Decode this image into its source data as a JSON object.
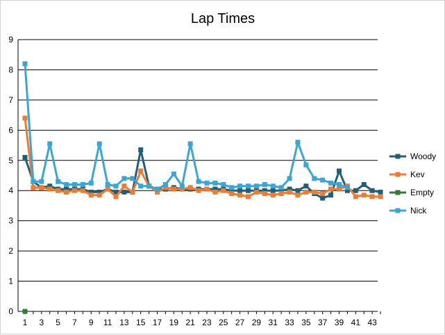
{
  "chart_data": {
    "type": "line",
    "title": "Lap Times",
    "xlabel": "",
    "ylabel": "",
    "ylim": [
      0,
      9
    ],
    "yticks": [
      0,
      1,
      2,
      3,
      4,
      5,
      6,
      7,
      8,
      9
    ],
    "xlim": [
      1,
      44
    ],
    "xticks": [
      1,
      3,
      5,
      7,
      9,
      11,
      13,
      15,
      17,
      19,
      21,
      23,
      25,
      27,
      29,
      31,
      33,
      35,
      37,
      39,
      41,
      43
    ],
    "grid": "horizontal",
    "legend_position": "right",
    "series": [
      {
        "name": "Woody",
        "color": "#1f5f7a",
        "marker": "square",
        "x": [
          1,
          2,
          3,
          4,
          5,
          6,
          7,
          8,
          9,
          10,
          11,
          12,
          13,
          14,
          15,
          16,
          17,
          18,
          19,
          20,
          21,
          22,
          23,
          24,
          25,
          26,
          27,
          28,
          29,
          30,
          31,
          32,
          33,
          34,
          35,
          36,
          37,
          38,
          39,
          40,
          41,
          42,
          43,
          44
        ],
        "values": [
          5.1,
          4.3,
          4.1,
          4.15,
          4.05,
          4.05,
          4.05,
          4.05,
          3.95,
          3.95,
          4.05,
          3.95,
          3.95,
          3.95,
          5.35,
          4.15,
          4.05,
          4.05,
          4.1,
          4.05,
          4.05,
          4.05,
          4.05,
          4.05,
          4.05,
          4.0,
          4.0,
          4.0,
          4.0,
          4.0,
          4.0,
          4.0,
          4.05,
          4.0,
          4.15,
          3.9,
          3.75,
          3.85,
          4.65,
          4.0,
          4.0,
          4.2,
          4.0,
          3.95
        ]
      },
      {
        "name": "Kev",
        "color": "#f07a2e",
        "marker": "square",
        "x": [
          1,
          2,
          3,
          4,
          5,
          6,
          7,
          8,
          9,
          10,
          11,
          12,
          13,
          14,
          15,
          16,
          17,
          18,
          19,
          20,
          21,
          22,
          23,
          24,
          25,
          26,
          27,
          28,
          29,
          30,
          31,
          32,
          33,
          34,
          35,
          36,
          37,
          38,
          39,
          40,
          41,
          42,
          43,
          44
        ],
        "values": [
          6.4,
          4.1,
          4.1,
          4.05,
          4.0,
          3.95,
          4.0,
          4.0,
          3.85,
          3.85,
          4.05,
          3.8,
          4.15,
          3.95,
          4.65,
          4.15,
          3.95,
          4.1,
          4.05,
          4.05,
          4.1,
          4.0,
          4.05,
          3.95,
          4.0,
          3.9,
          3.85,
          3.8,
          3.95,
          3.9,
          3.85,
          3.9,
          3.95,
          3.85,
          3.95,
          3.95,
          3.9,
          4.05,
          4.05,
          4.15,
          3.8,
          3.85,
          3.8,
          3.8
        ]
      },
      {
        "name": "Empty",
        "color": "#2e7d32",
        "marker": "square",
        "x": [
          1
        ],
        "values": [
          0
        ]
      },
      {
        "name": "Nick",
        "color": "#3aa6d8",
        "marker": "square",
        "x": [
          1,
          2,
          3,
          4,
          5,
          6,
          7,
          8,
          9,
          10,
          11,
          12,
          13,
          14,
          15,
          16,
          17,
          18,
          19,
          20,
          21,
          22,
          23,
          24,
          25,
          26,
          27,
          28,
          29,
          30,
          31,
          32,
          33,
          34,
          35,
          36,
          37,
          38,
          39,
          40
        ],
        "values": [
          8.2,
          4.3,
          4.3,
          5.55,
          4.3,
          4.2,
          4.2,
          4.2,
          4.25,
          5.55,
          4.2,
          4.15,
          4.4,
          4.4,
          4.15,
          4.15,
          4.05,
          4.2,
          4.55,
          4.15,
          5.55,
          4.3,
          4.25,
          4.25,
          4.2,
          4.1,
          4.15,
          4.15,
          4.15,
          4.2,
          4.15,
          4.1,
          4.4,
          5.6,
          4.85,
          4.4,
          4.35,
          4.25,
          4.2,
          4.1
        ]
      }
    ]
  }
}
